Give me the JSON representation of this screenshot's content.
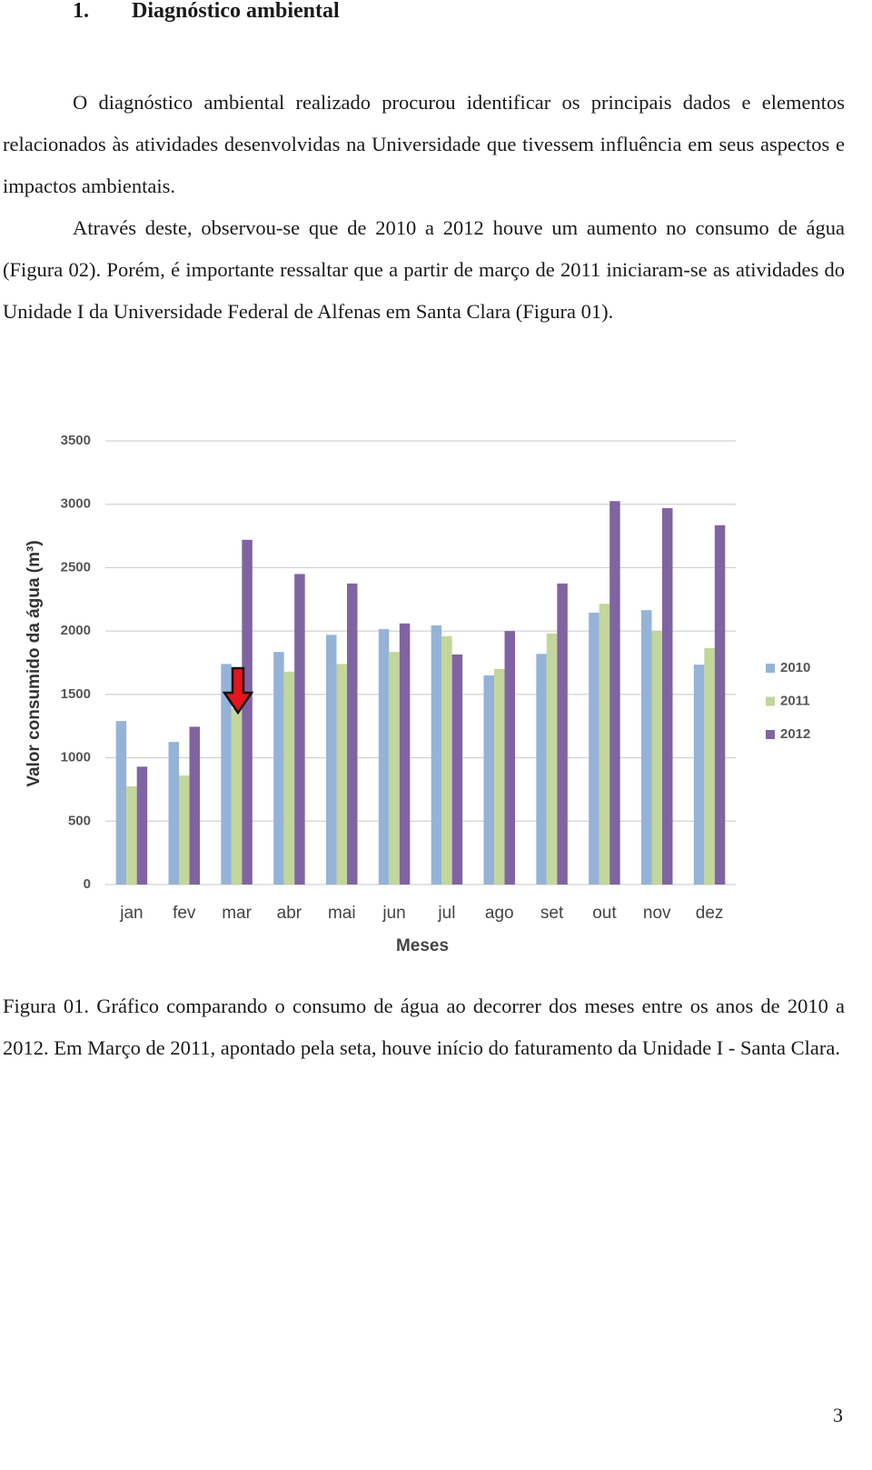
{
  "header": {
    "number": "1.",
    "title": "Diagnóstico ambiental"
  },
  "paragraphs": [
    "O diagnóstico ambiental realizado procurou identificar os principais dados e elementos relacionados às atividades desenvolvidas na Universidade que tivessem influência em seus aspectos e impactos ambientais.",
    "Através deste, observou-se que de 2010 a 2012 houve um aumento no consumo de água (Figura 02). Porém, é importante ressaltar que a partir de março de 2011 iniciaram-se as atividades do Unidade I da Universidade Federal de Alfenas em Santa Clara (Figura 01)."
  ],
  "chart_data": {
    "type": "bar",
    "x_label": "Meses",
    "y_label": "Valor consumido da água (m³)",
    "categories": [
      "jan",
      "fev",
      "mar",
      "abr",
      "mai",
      "jun",
      "jul",
      "ago",
      "set",
      "out",
      "nov",
      "dez"
    ],
    "series": [
      {
        "name": "2010",
        "color": "#95b3d7",
        "values": [
          1290,
          1125,
          1740,
          1835,
          1970,
          2015,
          2045,
          1650,
          1820,
          2145,
          2165,
          1735
        ]
      },
      {
        "name": "2011",
        "color": "#c3d69b",
        "values": [
          775,
          860,
          1390,
          1680,
          1740,
          1835,
          1960,
          1700,
          1980,
          2215,
          2000,
          1865
        ]
      },
      {
        "name": "2012",
        "color": "#8064a2",
        "values": [
          930,
          1245,
          2720,
          2450,
          2375,
          2060,
          1815,
          2000,
          2375,
          3025,
          2970,
          2835
        ]
      }
    ],
    "ylim": [
      0,
      3500
    ],
    "yticks": [
      0,
      500,
      1000,
      1500,
      2000,
      2500,
      3000,
      3500
    ],
    "grid": true,
    "legend": "right"
  },
  "caption": "Figura 01. Gráfico comparando o consumo de água ao decorrer dos meses entre os anos de 2010 a 2012. Em Março de 2011, apontado pela seta, houve início do faturamento da Unidade I - Santa Clara.",
  "page_number": "3"
}
